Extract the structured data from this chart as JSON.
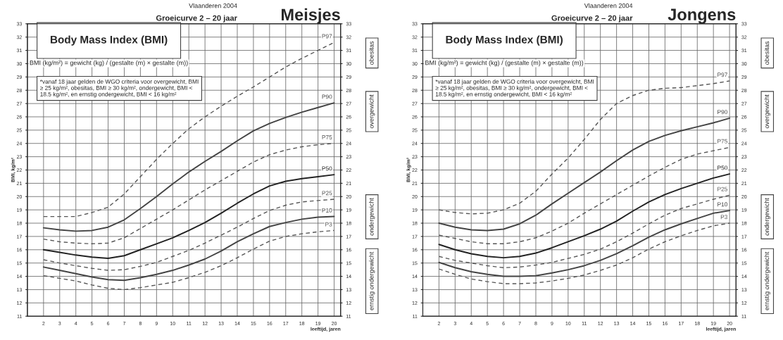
{
  "chart_data": [
    {
      "type": "line",
      "title": "Meisjes",
      "subtitle": "Groeicurve 2 – 20 jaar",
      "xlabel": "leeftijd, jaren",
      "ylabel": "BMI, kg/m²",
      "annotations": [
        "Vlaanderen 2004",
        "Body Mass Index (BMI)",
        "BMI (kg/m²) = gewicht (kg) / (gestalte (m) × gestalte (m))",
        "*vanaf 18 jaar gelden de WGO criteria voor overgewicht, BMI ≥ 25 kg/m², obesitas, BMI ≥ 30 kg/m², ondergewicht, BMI < 18.5 kg/m², en ernstig ondergewicht, BMI < 16 kg/m²",
        "obesitas",
        "overgewicht",
        "ondergewicht",
        "ernstig ondergewicht"
      ],
      "x": [
        2,
        3,
        4,
        5,
        6,
        7,
        8,
        9,
        10,
        11,
        12,
        13,
        14,
        15,
        16,
        17,
        18,
        19,
        20
      ],
      "series": [
        {
          "name": "P97",
          "color": "#555555",
          "line_style": "dashed",
          "values": [
            18.5,
            18.5,
            18.5,
            18.8,
            19.2,
            20.2,
            21.5,
            22.8,
            24.0,
            25.1,
            26.0,
            26.8,
            27.55,
            28.25,
            29.0,
            29.75,
            30.4,
            31.0,
            31.6
          ]
        },
        {
          "name": "P90",
          "color": "#444444",
          "line_style": "solid",
          "values": [
            17.65,
            17.5,
            17.4,
            17.45,
            17.7,
            18.25,
            19.1,
            20.0,
            20.95,
            21.85,
            22.65,
            23.4,
            24.2,
            24.95,
            25.5,
            25.95,
            26.35,
            26.7,
            27.05
          ]
        },
        {
          "name": "P75",
          "color": "#555555",
          "line_style": "dashed",
          "values": [
            16.8,
            16.6,
            16.5,
            16.45,
            16.5,
            16.9,
            17.6,
            18.3,
            19.0,
            19.75,
            20.5,
            21.2,
            21.9,
            22.6,
            23.15,
            23.5,
            23.75,
            23.9,
            24.0
          ]
        },
        {
          "name": "P50",
          "color": "#222222",
          "line_style": "solid",
          "values": [
            16.0,
            15.8,
            15.6,
            15.45,
            15.35,
            15.55,
            16.0,
            16.45,
            16.9,
            17.45,
            18.05,
            18.75,
            19.5,
            20.2,
            20.8,
            21.15,
            21.35,
            21.5,
            21.65
          ]
        },
        {
          "name": "P25",
          "color": "#555555",
          "line_style": "dashed",
          "values": [
            15.25,
            15.0,
            14.8,
            14.6,
            14.45,
            14.5,
            14.75,
            15.05,
            15.5,
            15.95,
            16.5,
            17.1,
            17.7,
            18.35,
            18.95,
            19.35,
            19.6,
            19.7,
            19.8
          ]
        },
        {
          "name": "P10",
          "color": "#444444",
          "line_style": "solid",
          "values": [
            14.7,
            14.45,
            14.2,
            13.95,
            13.75,
            13.7,
            13.9,
            14.15,
            14.45,
            14.85,
            15.3,
            15.9,
            16.6,
            17.2,
            17.75,
            18.05,
            18.3,
            18.45,
            18.5
          ]
        },
        {
          "name": "P3",
          "color": "#555555",
          "line_style": "dashed",
          "values": [
            14.05,
            13.85,
            13.65,
            13.35,
            13.1,
            13.0,
            13.15,
            13.35,
            13.55,
            13.9,
            14.3,
            14.8,
            15.4,
            16.05,
            16.65,
            17.0,
            17.2,
            17.35,
            17.45
          ]
        }
      ],
      "xlim": [
        1,
        20.4
      ],
      "xticks": [
        2,
        3,
        4,
        5,
        6,
        7,
        8,
        9,
        10,
        11,
        12,
        13,
        14,
        15,
        16,
        17,
        18,
        19,
        20
      ],
      "ylim": [
        11,
        33
      ],
      "yticks": [
        11,
        12,
        13,
        14,
        15,
        16,
        17,
        18,
        19,
        20,
        21,
        22,
        23,
        24,
        25,
        26,
        27,
        28,
        29,
        30,
        31,
        32,
        33
      ],
      "y2lim": [
        11,
        33
      ],
      "y2ticks": [
        11,
        12,
        13,
        14,
        15,
        16,
        17,
        18,
        19,
        20,
        21,
        22,
        23,
        24,
        25,
        26,
        27,
        28,
        29,
        30,
        31,
        32,
        33
      ],
      "grid": true
    },
    {
      "type": "line",
      "title": "Jongens",
      "subtitle": "Groeicurve 2 – 20 jaar",
      "xlabel": "leeftijd, jaren",
      "ylabel": "BMI, kg/m²",
      "annotations": [
        "Vlaanderen 2004",
        "Body Mass Index (BMI)",
        "BMI (kg/m²) = gewicht (kg) / (gestalte (m) × gestalte (m))",
        "*vanaf 18 jaar gelden de WGO criteria voor overgewicht, BMI ≥ 25 kg/m², obesitas, BMI ≥ 30 kg/m², ondergewicht, BMI < 18.5 kg/m², en ernstig ondergewicht, BMI < 16 kg/m²",
        "obesitas",
        "overgewicht",
        "ondergewicht",
        "ernstig ondergewicht"
      ],
      "x": [
        2,
        3,
        4,
        5,
        6,
        7,
        8,
        9,
        10,
        11,
        12,
        13,
        14,
        15,
        16,
        17,
        18,
        19,
        20
      ],
      "series": [
        {
          "name": "P97",
          "color": "#555555",
          "line_style": "dashed",
          "values": [
            19.0,
            18.8,
            18.7,
            18.75,
            19.0,
            19.5,
            20.4,
            21.7,
            22.9,
            24.3,
            25.8,
            27.0,
            27.6,
            28.0,
            28.15,
            28.2,
            28.35,
            28.5,
            28.7
          ]
        },
        {
          "name": "P90",
          "color": "#444444",
          "line_style": "solid",
          "values": [
            18.0,
            17.7,
            17.5,
            17.45,
            17.55,
            17.95,
            18.6,
            19.45,
            20.25,
            21.05,
            21.85,
            22.7,
            23.5,
            24.15,
            24.6,
            24.95,
            25.25,
            25.55,
            25.9
          ]
        },
        {
          "name": "P75",
          "color": "#555555",
          "line_style": "dashed",
          "values": [
            17.1,
            16.85,
            16.6,
            16.45,
            16.45,
            16.6,
            16.9,
            17.4,
            18.0,
            18.75,
            19.45,
            20.15,
            20.85,
            21.55,
            22.2,
            22.8,
            23.2,
            23.45,
            23.7
          ]
        },
        {
          "name": "P50",
          "color": "#222222",
          "line_style": "solid",
          "values": [
            16.4,
            16.0,
            15.7,
            15.5,
            15.4,
            15.5,
            15.75,
            16.15,
            16.6,
            17.05,
            17.55,
            18.15,
            18.9,
            19.6,
            20.15,
            20.6,
            21.0,
            21.4,
            21.7
          ]
        },
        {
          "name": "P25",
          "color": "#555555",
          "line_style": "dashed",
          "values": [
            15.5,
            15.2,
            15.0,
            14.8,
            14.65,
            14.7,
            14.85,
            15.05,
            15.35,
            15.65,
            16.05,
            16.6,
            17.25,
            17.95,
            18.6,
            19.1,
            19.45,
            19.8,
            20.1
          ]
        },
        {
          "name": "P10",
          "color": "#444444",
          "line_style": "solid",
          "values": [
            15.05,
            14.65,
            14.35,
            14.15,
            14.0,
            14.0,
            14.05,
            14.25,
            14.5,
            14.8,
            15.2,
            15.7,
            16.3,
            16.95,
            17.5,
            17.95,
            18.35,
            18.75,
            18.95
          ]
        },
        {
          "name": "P3",
          "color": "#555555",
          "line_style": "dashed",
          "values": [
            14.55,
            14.15,
            13.8,
            13.6,
            13.45,
            13.45,
            13.5,
            13.65,
            13.85,
            14.1,
            14.45,
            14.85,
            15.4,
            16.05,
            16.6,
            17.05,
            17.45,
            17.8,
            18.0
          ]
        }
      ],
      "xlim": [
        1,
        20.4
      ],
      "xticks": [
        2,
        3,
        4,
        5,
        6,
        7,
        8,
        9,
        10,
        11,
        12,
        13,
        14,
        15,
        16,
        17,
        18,
        19,
        20
      ],
      "ylim": [
        11,
        33
      ],
      "yticks": [
        11,
        12,
        13,
        14,
        15,
        16,
        17,
        18,
        19,
        20,
        21,
        22,
        23,
        24,
        25,
        26,
        27,
        28,
        29,
        30,
        31,
        32,
        33
      ],
      "y2lim": [
        11,
        33
      ],
      "y2ticks": [
        11,
        12,
        13,
        14,
        15,
        16,
        17,
        18,
        19,
        20,
        21,
        22,
        23,
        24,
        25,
        26,
        27,
        28,
        29,
        30,
        31,
        32,
        33
      ],
      "grid": true
    }
  ]
}
